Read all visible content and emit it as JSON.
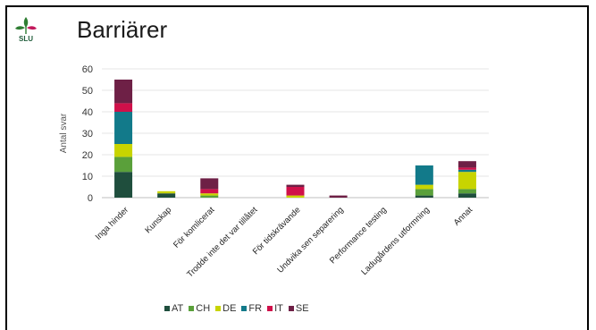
{
  "slide": {
    "title": "Barriärer",
    "logo_text": "SLU"
  },
  "colors": {
    "AT": "#1f4e3d",
    "CH": "#5aa03a",
    "DE": "#c8d400",
    "FR": "#127a8a",
    "IT": "#d0104a",
    "SE": "#6e2046"
  },
  "chart_data": {
    "type": "bar",
    "stacked": true,
    "ylabel": "Antal svar",
    "xlabel": "",
    "ylim": [
      0,
      60
    ],
    "yticks": [
      0,
      10,
      20,
      30,
      40,
      50,
      60
    ],
    "grid": true,
    "legend_position": "bottom",
    "categories": [
      "Inga hinder",
      "Kunskap",
      "För komlicerat",
      "Trodde inte det var tillåtet",
      "För tidskrävande",
      "Undvika sen separering",
      "Performance testing",
      "Ladugårdens utformning",
      "Annat"
    ],
    "series": [
      {
        "name": "AT",
        "values": [
          12,
          2,
          0,
          0,
          0,
          0,
          0,
          1,
          2
        ]
      },
      {
        "name": "CH",
        "values": [
          7,
          0,
          1,
          0,
          0,
          0,
          0,
          3,
          2
        ]
      },
      {
        "name": "DE",
        "values": [
          6,
          1,
          1,
          0,
          1,
          0,
          0,
          2,
          8
        ]
      },
      {
        "name": "FR",
        "values": [
          15,
          0,
          0,
          0,
          0,
          0,
          0,
          9,
          1
        ]
      },
      {
        "name": "IT",
        "values": [
          4,
          0,
          2,
          0,
          4,
          0,
          0,
          0,
          1
        ]
      },
      {
        "name": "SE",
        "values": [
          11,
          0,
          5,
          0,
          1,
          1,
          0,
          0,
          3
        ]
      }
    ]
  }
}
